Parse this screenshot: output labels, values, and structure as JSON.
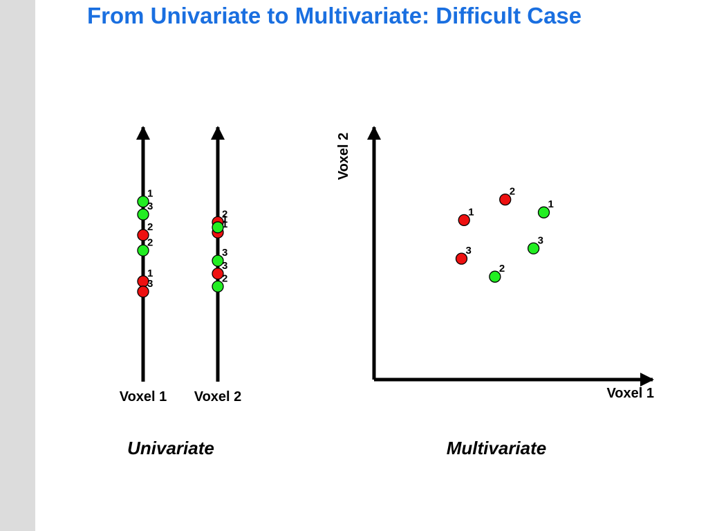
{
  "slide": {
    "title": "From Univariate to Multivariate: Difficult Case"
  },
  "colors": {
    "title": "#1a6fe0",
    "red": "#ee1111",
    "green": "#22ee22",
    "axis": "#000000",
    "sidebar": "#dcdcdc"
  },
  "univariate": {
    "caption": "Univariate",
    "axes": [
      {
        "label": "Voxel 1",
        "points": [
          {
            "label": "1",
            "color": "green",
            "value": 0.7
          },
          {
            "label": "3",
            "color": "green",
            "value": 0.65
          },
          {
            "label": "2",
            "color": "red",
            "value": 0.57
          },
          {
            "label": "2",
            "color": "green",
            "value": 0.51
          },
          {
            "label": "1",
            "color": "red",
            "value": 0.39
          },
          {
            "label": "3",
            "color": "red",
            "value": 0.35
          }
        ]
      },
      {
        "label": "Voxel 2",
        "points": [
          {
            "label": "2",
            "color": "red",
            "value": 0.62
          },
          {
            "label": "1",
            "color": "red",
            "value": 0.58
          },
          {
            "label": "1",
            "color": "green",
            "value": 0.6
          },
          {
            "label": "3",
            "color": "green",
            "value": 0.47
          },
          {
            "label": "3",
            "color": "red",
            "value": 0.42
          },
          {
            "label": "2",
            "color": "green",
            "value": 0.37
          }
        ]
      }
    ]
  },
  "multivariate": {
    "caption": "Multivariate",
    "x_label": "Voxel 1",
    "y_label": "Voxel 2",
    "points": [
      {
        "label": "1",
        "color": "red",
        "x": 0.35,
        "y": 0.62
      },
      {
        "label": "2",
        "color": "red",
        "x": 0.51,
        "y": 0.7
      },
      {
        "label": "3",
        "color": "red",
        "x": 0.34,
        "y": 0.47
      },
      {
        "label": "1",
        "color": "green",
        "x": 0.66,
        "y": 0.65
      },
      {
        "label": "3",
        "color": "green",
        "x": 0.62,
        "y": 0.51
      },
      {
        "label": "2",
        "color": "green",
        "x": 0.47,
        "y": 0.4
      }
    ]
  }
}
